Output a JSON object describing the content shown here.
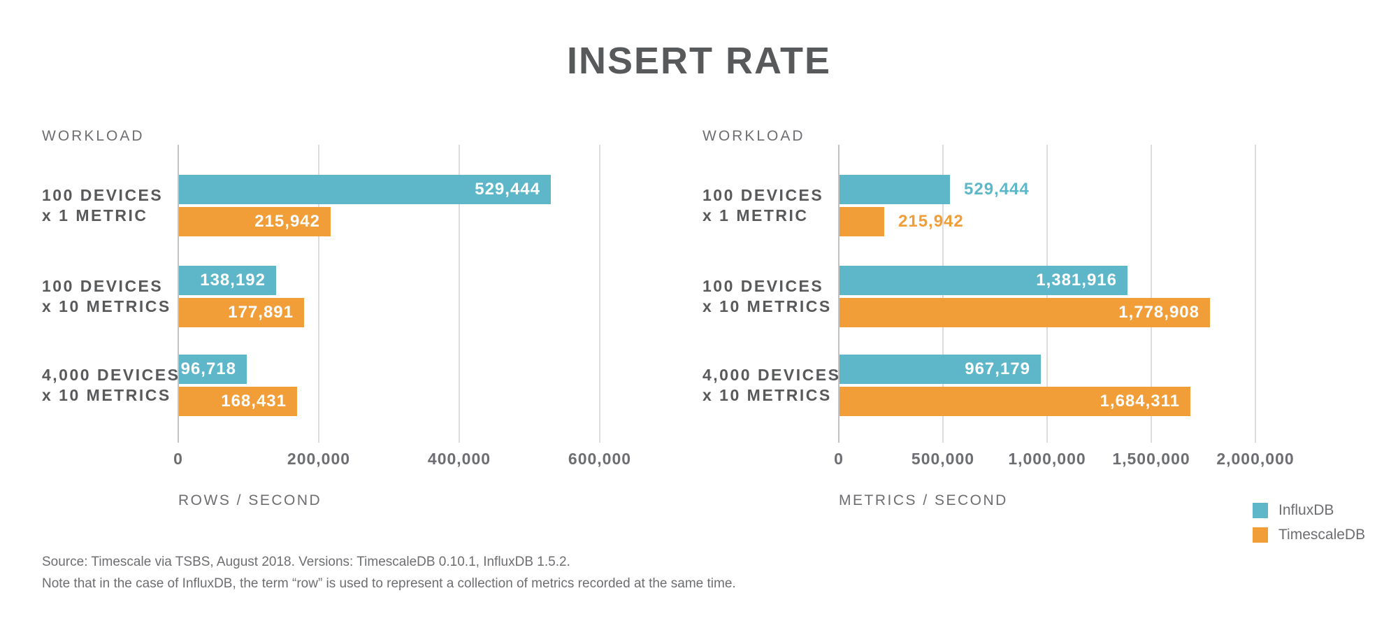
{
  "title": "INSERT RATE",
  "colors": {
    "influxdb": "#5EB7C8",
    "timescaledb": "#F19D38",
    "heading_text": "#58595B",
    "muted_text": "#6D6E71",
    "gridline": "#DCDCDC",
    "axis_line": "#C3C3C3",
    "value_text_inside": "#FFFFFF",
    "background": "#FFFFFF"
  },
  "legend": {
    "position": "bottom-right",
    "items": [
      {
        "label": "InfluxDB",
        "color": "#5EB7C8"
      },
      {
        "label": "TimescaleDB",
        "color": "#F19D38"
      }
    ]
  },
  "footnotes": [
    "Source: Timescale via TSBS, August 2018. Versions: TimescaleDB 0.10.1, InfluxDB 1.5.2.",
    "Note that in the case of InfluxDB, the term “row” is used to represent a collection of metrics recorded at the same time."
  ],
  "chart_data": [
    {
      "type": "bar",
      "orientation": "horizontal",
      "title": "WORKLOAD",
      "xlabel": "ROWS / SECOND",
      "xlim": [
        0,
        600000
      ],
      "xticks": [
        0,
        200000,
        400000,
        600000
      ],
      "xtick_labels": [
        "0",
        "200,000",
        "400,000",
        "600,000"
      ],
      "grid": true,
      "categories": [
        [
          "100 DEVICES",
          "x 1 METRIC"
        ],
        [
          "100 DEVICES",
          "x 10 METRICS"
        ],
        [
          "4,000 DEVICES",
          "x 10 METRICS"
        ]
      ],
      "series": [
        {
          "name": "InfluxDB",
          "color": "#5EB7C8",
          "values": [
            529444,
            138192,
            96718
          ],
          "value_labels": [
            "529,444",
            "138,192",
            "96,718"
          ],
          "label_inside": [
            true,
            true,
            true
          ]
        },
        {
          "name": "TimescaleDB",
          "color": "#F19D38",
          "values": [
            215942,
            177891,
            168431
          ],
          "value_labels": [
            "215,942",
            "177,891",
            "168,431"
          ],
          "label_inside": [
            true,
            true,
            true
          ]
        }
      ]
    },
    {
      "type": "bar",
      "orientation": "horizontal",
      "title": "WORKLOAD",
      "xlabel": "METRICS / SECOND",
      "xlim": [
        0,
        2000000
      ],
      "xticks": [
        0,
        500000,
        1000000,
        1500000,
        2000000
      ],
      "xtick_labels": [
        "0",
        "500,000",
        "1,000,000",
        "1,500,000",
        "2,000,000"
      ],
      "grid": true,
      "categories": [
        [
          "100 DEVICES",
          "x 1 METRIC"
        ],
        [
          "100 DEVICES",
          "x 10 METRICS"
        ],
        [
          "4,000 DEVICES",
          "x 10 METRICS"
        ]
      ],
      "series": [
        {
          "name": "InfluxDB",
          "color": "#5EB7C8",
          "values": [
            529444,
            1381916,
            967179
          ],
          "value_labels": [
            "529,444",
            "1,381,916",
            "967,179"
          ],
          "label_inside": [
            false,
            true,
            true
          ]
        },
        {
          "name": "TimescaleDB",
          "color": "#F19D38",
          "values": [
            215942,
            1778908,
            1684311
          ],
          "value_labels": [
            "215,942",
            "1,778,908",
            "1,684,311"
          ],
          "label_inside": [
            false,
            true,
            true
          ]
        }
      ]
    }
  ]
}
